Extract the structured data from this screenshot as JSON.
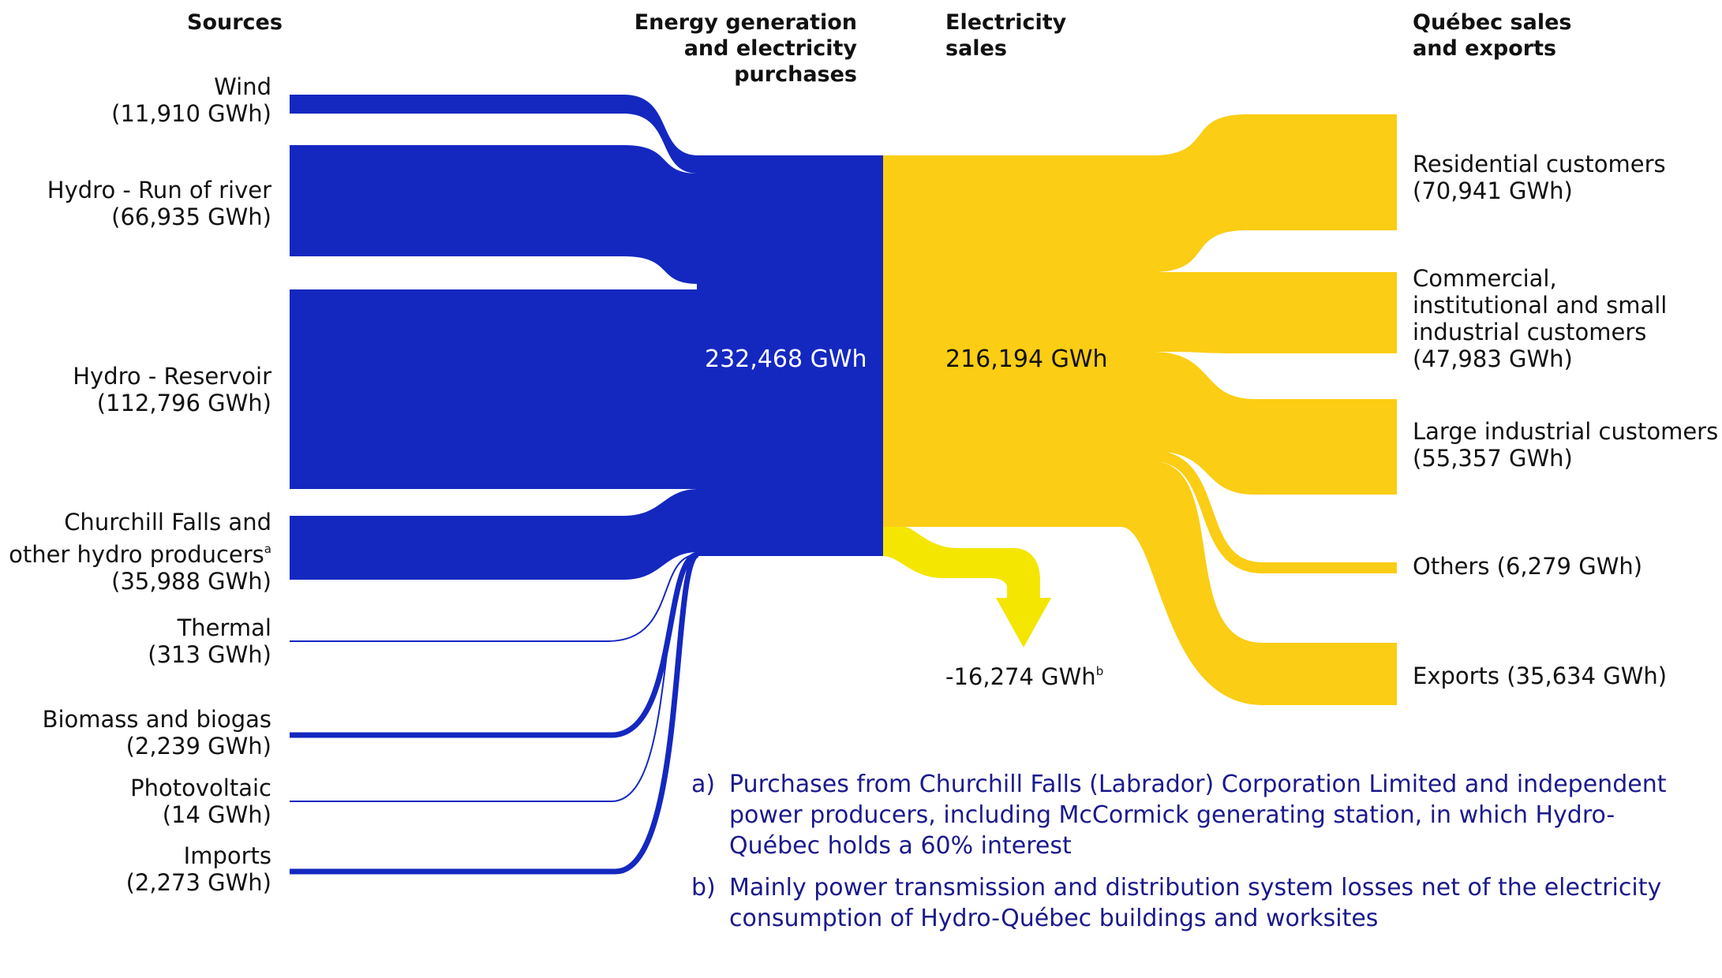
{
  "headers": {
    "sources": "Sources",
    "generation": [
      "Energy generation",
      "and electricity purchases"
    ],
    "sales": [
      "Electricity",
      "sales"
    ],
    "quebec": [
      "Québec sales",
      "and exports"
    ]
  },
  "sources": [
    {
      "name": "Wind",
      "value": "(11,910 GWh)"
    },
    {
      "name": "Hydro - Run of river",
      "value": "(66,935 GWh)"
    },
    {
      "name": "Hydro - Reservoir",
      "value": "(112,796 GWh)"
    },
    {
      "name": [
        "Churchill Falls and",
        "other hydro producers"
      ],
      "note": "a",
      "value": "(35,988 GWh)"
    },
    {
      "name": "Thermal",
      "value": "(313 GWh)"
    },
    {
      "name": "Biomass and biogas",
      "value": "(2,239 GWh)"
    },
    {
      "name": "Photovoltaic",
      "value": "(14 GWh)"
    },
    {
      "name": "Imports",
      "value": "(2,273 GWh)"
    }
  ],
  "generation_total": "232,468 GWh",
  "sales_total": "216,194 GWh",
  "losses": {
    "value": "-16,274 GWh",
    "note": "b"
  },
  "destinations": [
    {
      "name": "Residential customers",
      "value": "(70,941 GWh)"
    },
    {
      "name": [
        "Commercial,",
        "institutional and small",
        "industrial customers"
      ],
      "value": "(47,983 GWh)"
    },
    {
      "name": "Large industrial customers",
      "value": "(55,357 GWh)"
    },
    {
      "name": "Others",
      "value": "(6,279 GWh)"
    },
    {
      "name": "Exports",
      "value": "(35,634 GWh)"
    }
  ],
  "footnotes": [
    {
      "mark": "a)",
      "text": "Purchases from Churchill Falls (Labrador) Corporation Limited and independent power producers, including McCormick generating station, in which Hydro-Québec holds a 60% interest"
    },
    {
      "mark": "b)",
      "text": "Mainly power transmission and distribution system losses net of the electricity consumption of Hydro-Québec buildings and worksites"
    }
  ],
  "colors": {
    "blue": "#1428c0",
    "yellow": "#fbcd14",
    "arrow": "#f4e600",
    "footnote": "#1a1a8c"
  }
}
